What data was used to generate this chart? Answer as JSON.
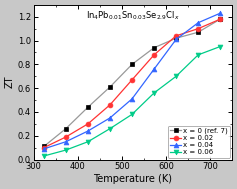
{
  "title": "In$_4$Pb$_{0.01}$Sn$_{0.03}$Se$_{2.9}$Cl$_x$",
  "xlabel": "Temperature (K)",
  "ylabel": "ZT",
  "series": [
    {
      "label": "x = 0 (ref. 7)",
      "line_color": "#999999",
      "marker": "s",
      "marker_facecolor": "black",
      "marker_edgecolor": "black",
      "x": [
        323,
        373,
        423,
        473,
        523,
        573,
        623,
        673,
        723
      ],
      "y": [
        0.11,
        0.26,
        0.44,
        0.61,
        0.8,
        0.94,
        1.02,
        1.07,
        1.18
      ]
    },
    {
      "label": "x = 0.02",
      "line_color": "#ff3333",
      "marker": "o",
      "marker_facecolor": "#ff3333",
      "marker_edgecolor": "#ff3333",
      "x": [
        323,
        373,
        423,
        473,
        523,
        573,
        623,
        673,
        723
      ],
      "y": [
        0.1,
        0.19,
        0.3,
        0.46,
        0.67,
        0.88,
        1.04,
        1.1,
        1.18
      ]
    },
    {
      "label": "x = 0.04",
      "line_color": "#3366ff",
      "marker": "^",
      "marker_facecolor": "#3366ff",
      "marker_edgecolor": "#3366ff",
      "x": [
        323,
        373,
        423,
        473,
        523,
        573,
        623,
        673,
        723
      ],
      "y": [
        0.09,
        0.15,
        0.24,
        0.35,
        0.51,
        0.76,
        1.01,
        1.15,
        1.23
      ]
    },
    {
      "label": "x = 0.06",
      "line_color": "#00cc88",
      "marker": "v",
      "marker_facecolor": "#00cc88",
      "marker_edgecolor": "#00cc88",
      "x": [
        323,
        373,
        423,
        473,
        523,
        573,
        623,
        673,
        723
      ],
      "y": [
        0.03,
        0.08,
        0.15,
        0.26,
        0.38,
        0.56,
        0.7,
        0.88,
        0.95
      ]
    }
  ],
  "xlim": [
    300,
    750
  ],
  "ylim": [
    0.0,
    1.3
  ],
  "xticks": [
    300,
    400,
    500,
    600,
    700
  ],
  "yticks": [
    0.0,
    0.2,
    0.4,
    0.6,
    0.8,
    1.0,
    1.2
  ],
  "outer_bg_color": "#c8c8c8",
  "plot_bg_color": "#ffffff",
  "title_fontsize": 6.0,
  "label_fontsize": 7.0,
  "tick_fontsize": 6.0,
  "legend_fontsize": 5.0,
  "markersize": 3.5,
  "linewidth": 0.9
}
